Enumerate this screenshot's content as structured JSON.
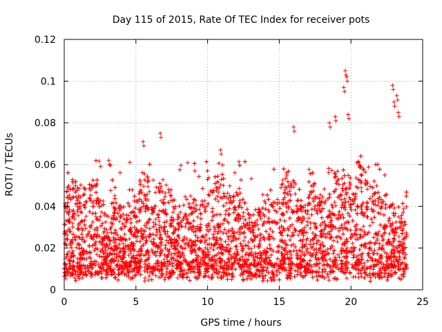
{
  "chart_data": {
    "type": "scatter",
    "title": "Day 115 of 2015, Rate Of TEC Index for receiver pots",
    "xlabel": "GPS time / hours",
    "ylabel": "ROTI / TECUs",
    "xlim": [
      0,
      25
    ],
    "ylim": [
      0,
      0.12
    ],
    "xticks": [
      0,
      5,
      10,
      15,
      20,
      25
    ],
    "xtick_labels": [
      "0",
      "5",
      "10",
      "15",
      "20",
      "25"
    ],
    "yticks": [
      0,
      0.02,
      0.04,
      0.06,
      0.08,
      0.1,
      0.12
    ],
    "ytick_labels": [
      "0",
      "0.02",
      "0.04",
      "0.06",
      "0.08",
      "0.1",
      "0.12"
    ],
    "grid": true,
    "marker": "+",
    "series": [
      {
        "name": "ROTI",
        "color": "#ff0000",
        "x_range": [
          0,
          23.9
        ],
        "typical_y": [
          0.003,
          0.05
        ],
        "notable_points": [
          {
            "x": 3.1,
            "y": 0.062
          },
          {
            "x": 5.5,
            "y": 0.071
          },
          {
            "x": 6.7,
            "y": 0.075
          },
          {
            "x": 10.9,
            "y": 0.067
          },
          {
            "x": 16.0,
            "y": 0.078
          },
          {
            "x": 18.5,
            "y": 0.08
          },
          {
            "x": 18.9,
            "y": 0.083
          },
          {
            "x": 19.5,
            "y": 0.097
          },
          {
            "x": 19.6,
            "y": 0.105
          },
          {
            "x": 19.7,
            "y": 0.102
          },
          {
            "x": 19.8,
            "y": 0.084
          },
          {
            "x": 22.9,
            "y": 0.098
          },
          {
            "x": 23.0,
            "y": 0.09
          },
          {
            "x": 23.2,
            "y": 0.093
          },
          {
            "x": 23.3,
            "y": 0.085
          }
        ]
      }
    ]
  }
}
